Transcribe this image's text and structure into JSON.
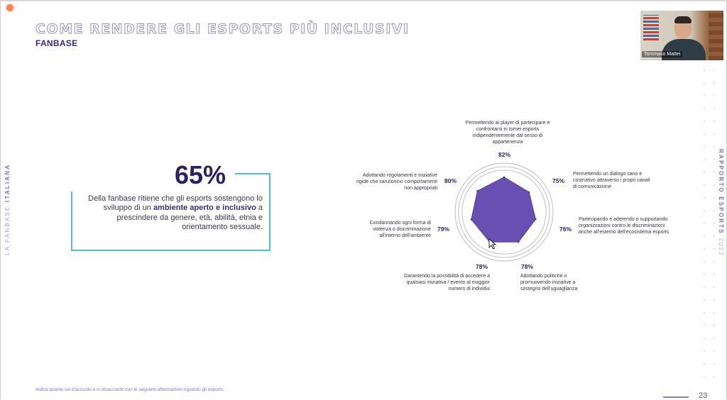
{
  "slide": {
    "title": "COME RENDERE GLI ESPORTS PIÙ INCLUSIVI",
    "subtitle": "FANBASE",
    "side_left_light": "LA FANBASE ",
    "side_left_bold": "ITALIANA",
    "side_right_bold": "RAPPORTO ESPORTS",
    "side_right_light": " 2022",
    "page_number": "23",
    "footnote": "Indica quanto sei d'accordo o in disaccordo con le seguenti affermazioni riguardo gli esports."
  },
  "stat": {
    "value": "65%",
    "text_before": "Della fanbase ritiene che gli esports sostengono lo sviluppo di un ",
    "text_bold": "ambiente aperto e inclusivo",
    "text_after": " a prescindere da genere, età, abilità, etnia e orientamento sessuale."
  },
  "webcam": {
    "name": "Tommaso Mattei"
  },
  "colors": {
    "accent": "#6a4fb3",
    "frame": "#4fc0c5",
    "title": "#3d2b78"
  },
  "chart_data": {
    "type": "radar",
    "max": 100,
    "rings": 3,
    "categories": [
      "Permettendo ai player di partecipare e confrontarsi in tornei esports indipendentemente dal sesso di appartenenza",
      "Permettendo un dialogo sano e costruttivo attraverso i propri canali di comunicazione",
      "Partecipando e aderendo o supportando organizzazioni contro le discriminazioni anche all'esterno dell'ecosistema esports",
      "Adottando politiche o promuovendo iniziative a sostegno dell'uguaglianza",
      "Garantendo la possibilità di accedere a qualsiasi iniziativa / evento al maggior numero di individui",
      "Condannando ogni forma di violenza o discriminazione all'interno dell'ambiente",
      "Adottando regolamenti e iniziative rigide che sanzionino comportamenti non appropriati"
    ],
    "values": [
      82,
      75,
      76,
      78,
      78,
      79,
      80
    ],
    "value_labels": [
      "82%",
      "75%",
      "76%",
      "78%",
      "78%",
      "79%",
      "80%"
    ]
  }
}
